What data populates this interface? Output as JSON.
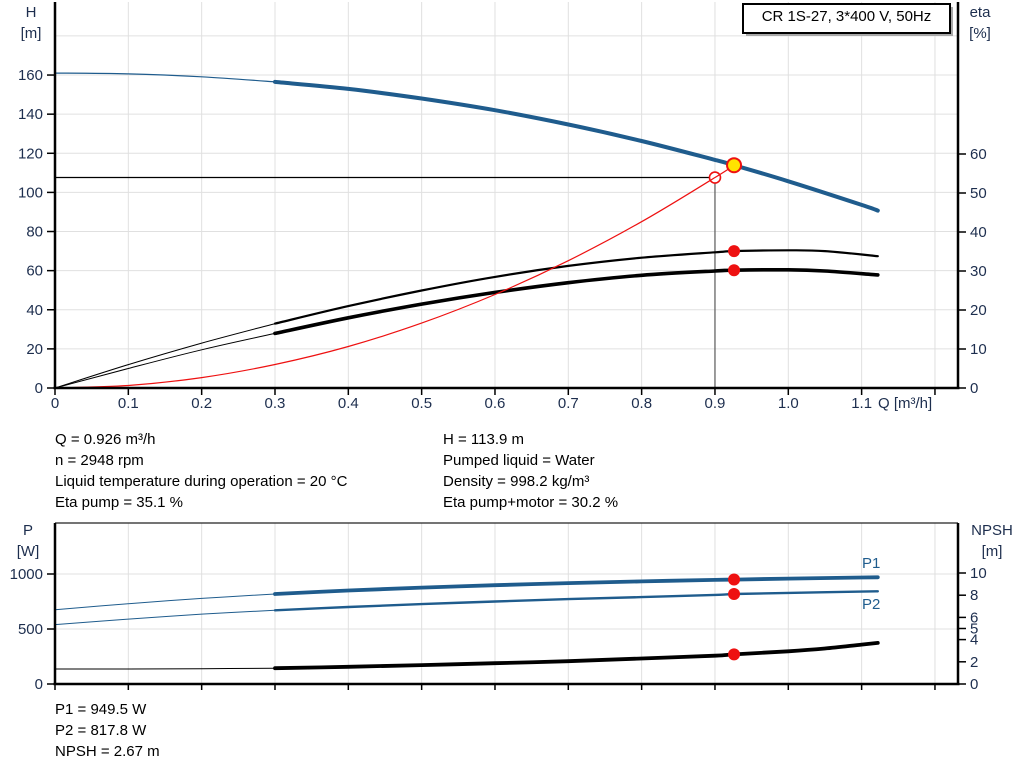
{
  "panel": {
    "title_box": "CR 1S-27, 3*400 V, 50Hz"
  },
  "axis_titles": {
    "h": "H",
    "h_unit": "[m]",
    "eta": "eta",
    "eta_unit": "[%]",
    "p": "P",
    "p_unit": "[W]",
    "npsh": "NPSH",
    "npsh_unit": "[m]",
    "q": "Q [m³/h]"
  },
  "series_labels": {
    "p1": "P1",
    "p2": "P2"
  },
  "info_block_top": {
    "left_lines": [
      "Q = 0.926 m³/h",
      "n = 2948 rpm",
      "Liquid temperature during operation = 20 °C",
      "Eta pump = 35.1 %"
    ],
    "right_lines": [
      "H = 113.9 m",
      "Pumped liquid = Water",
      "Density = 998.2 kg/m³",
      "Eta pump+motor = 30.2 %"
    ]
  },
  "info_block_bottom": {
    "lines": [
      "P1 = 949.5 W",
      "P2 = 817.8 W",
      "NPSH = 2.67 m"
    ]
  },
  "colors": {
    "curve_blue": "#1f5c8d",
    "curve_black": "#000000",
    "curve_red": "#ee1111",
    "duty_yellow": "#ffe300",
    "grid": "#e0e0e0",
    "axis": "#000000",
    "marker_gray": "#666666",
    "tick_text": "#1d2e4e"
  },
  "chart_data": [
    {
      "type": "line",
      "title": "CR 1S-27, 3*400 V, 50Hz",
      "xlabel": "Q [m³/h]",
      "xlim": [
        0,
        1.232
      ],
      "x_ticks": [
        0,
        0.1,
        0.2,
        0.3,
        0.4,
        0.5,
        0.6,
        0.7,
        0.8,
        0.9,
        1.0,
        1.1
      ],
      "x_grid": [
        0.1,
        0.2,
        0.3,
        0.4,
        0.5,
        0.6,
        0.7,
        0.8,
        0.9,
        1.0,
        1.1,
        1.2
      ],
      "y_left": {
        "label": "H [m]",
        "ticks": [
          0,
          20,
          40,
          60,
          80,
          100,
          120,
          140,
          160
        ],
        "grid": [
          20,
          40,
          60,
          80,
          100,
          120,
          140,
          160,
          180
        ],
        "lim": [
          0,
          198
        ]
      },
      "y_right": {
        "label": "eta [%]",
        "ticks": [
          0,
          10,
          20,
          30,
          40,
          50,
          60
        ],
        "lim": [
          0,
          99
        ]
      },
      "legend_position": "none",
      "series": [
        {
          "name": "H pump curve",
          "axis": "H",
          "color_key": "curve_blue",
          "thin_until": 0.3,
          "thin_width": 1.2,
          "thick_width": 4,
          "points": [
            [
              0,
              161
            ],
            [
              0.1,
              160.6
            ],
            [
              0.2,
              159.1
            ],
            [
              0.3,
              156.5
            ],
            [
              0.4,
              152.9
            ],
            [
              0.5,
              148.0
            ],
            [
              0.6,
              142.0
            ],
            [
              0.7,
              134.7
            ],
            [
              0.8,
              126.3
            ],
            [
              0.9,
              116.6
            ],
            [
              0.926,
              113.9
            ],
            [
              1.0,
              105.7
            ],
            [
              1.1,
              93.6
            ],
            [
              1.122,
              90.7
            ]
          ]
        },
        {
          "name": "Eta pump",
          "axis": "eta",
          "color_key": "curve_black",
          "thin_until": 0.3,
          "thin_width": 1,
          "thick_width": 2.2,
          "points": [
            [
              0,
              0
            ],
            [
              0.1,
              6.0
            ],
            [
              0.2,
              11.5
            ],
            [
              0.3,
              16.5
            ],
            [
              0.4,
              21.0
            ],
            [
              0.5,
              25.0
            ],
            [
              0.6,
              28.5
            ],
            [
              0.7,
              31.3
            ],
            [
              0.8,
              33.4
            ],
            [
              0.9,
              34.8
            ],
            [
              0.926,
              35.1
            ],
            [
              1.0,
              35.3
            ],
            [
              1.05,
              35.1
            ],
            [
              1.122,
              33.8
            ]
          ]
        },
        {
          "name": "Eta pump+motor",
          "axis": "eta",
          "color_key": "curve_black",
          "thin_until": 0.3,
          "thin_width": 1,
          "thick_width": 3.6,
          "points": [
            [
              0,
              0
            ],
            [
              0.1,
              5.0
            ],
            [
              0.2,
              9.8
            ],
            [
              0.3,
              14.0
            ],
            [
              0.4,
              18.0
            ],
            [
              0.5,
              21.5
            ],
            [
              0.6,
              24.5
            ],
            [
              0.7,
              27.0
            ],
            [
              0.8,
              28.9
            ],
            [
              0.9,
              30.0
            ],
            [
              0.926,
              30.2
            ],
            [
              1.0,
              30.3
            ],
            [
              1.05,
              30.0
            ],
            [
              1.122,
              29.0
            ]
          ]
        },
        {
          "name": "System curve",
          "axis": "H",
          "color_key": "curve_red",
          "thin_until": 9,
          "thin_width": 1.2,
          "thick_width": 1.2,
          "points": [
            [
              0,
              0
            ],
            [
              0.1,
              1.3
            ],
            [
              0.2,
              5.3
            ],
            [
              0.3,
              12.0
            ],
            [
              0.4,
              21.2
            ],
            [
              0.5,
              33.2
            ],
            [
              0.6,
              47.8
            ],
            [
              0.7,
              65.1
            ],
            [
              0.8,
              85.0
            ],
            [
              0.9,
              107.6
            ],
            [
              0.926,
              113.9
            ]
          ]
        }
      ],
      "duty_point": {
        "q": 0.926,
        "h": 113.9
      },
      "requested_point": {
        "q": 0.9,
        "h": 107.6
      },
      "eta_markers": [
        {
          "q": 0.926,
          "value": 35.1
        },
        {
          "q": 0.926,
          "value": 30.2
        }
      ]
    },
    {
      "type": "line",
      "title": "",
      "xlabel": "",
      "xlim": [
        0,
        1.232
      ],
      "x_ticks": [],
      "x_grid": [
        0.1,
        0.2,
        0.3,
        0.4,
        0.5,
        0.6,
        0.7,
        0.8,
        0.9,
        1.0,
        1.1,
        1.2
      ],
      "y_left": {
        "label": "P [W]",
        "ticks": [
          0,
          500,
          1000
        ],
        "grid": [
          500,
          1000
        ],
        "lim": [
          0,
          1460
        ]
      },
      "y_right": {
        "label": "NPSH [m]",
        "ticks": [
          0,
          2,
          4,
          5,
          6,
          8,
          10
        ],
        "lim": [
          0,
          14.5
        ]
      },
      "legend_position": "inline-right",
      "series": [
        {
          "name": "P1",
          "axis": "P",
          "color_key": "curve_blue",
          "thin_until": 0.3,
          "thin_width": 1,
          "thick_width": 3.8,
          "points": [
            [
              0,
              675
            ],
            [
              0.1,
              730
            ],
            [
              0.2,
              778
            ],
            [
              0.3,
              818
            ],
            [
              0.4,
              850
            ],
            [
              0.5,
              876
            ],
            [
              0.6,
              898
            ],
            [
              0.7,
              917
            ],
            [
              0.8,
              933
            ],
            [
              0.9,
              946
            ],
            [
              0.926,
              949.5
            ],
            [
              1.0,
              958
            ],
            [
              1.1,
              968
            ],
            [
              1.122,
              970
            ]
          ]
        },
        {
          "name": "P2",
          "axis": "P",
          "color_key": "curve_blue",
          "thin_until": 0.3,
          "thin_width": 1,
          "thick_width": 2.4,
          "points": [
            [
              0,
              540
            ],
            [
              0.1,
              590
            ],
            [
              0.2,
              635
            ],
            [
              0.3,
              670
            ],
            [
              0.4,
              700
            ],
            [
              0.5,
              726
            ],
            [
              0.6,
              750
            ],
            [
              0.7,
              772
            ],
            [
              0.8,
              790
            ],
            [
              0.9,
              810
            ],
            [
              0.926,
              817.8
            ],
            [
              1.0,
              828
            ],
            [
              1.1,
              840
            ],
            [
              1.122,
              843
            ]
          ]
        },
        {
          "name": "NPSH",
          "axis": "NPSH",
          "color_key": "curve_black",
          "thin_until": 0.3,
          "thin_width": 1,
          "thick_width": 3.8,
          "points": [
            [
              0,
              1.35
            ],
            [
              0.1,
              1.35
            ],
            [
              0.2,
              1.38
            ],
            [
              0.3,
              1.42
            ],
            [
              0.4,
              1.55
            ],
            [
              0.5,
              1.7
            ],
            [
              0.6,
              1.87
            ],
            [
              0.7,
              2.05
            ],
            [
              0.8,
              2.3
            ],
            [
              0.9,
              2.55
            ],
            [
              0.926,
              2.67
            ],
            [
              1.0,
              2.95
            ],
            [
              1.05,
              3.2
            ],
            [
              1.1,
              3.55
            ],
            [
              1.122,
              3.7
            ]
          ]
        }
      ],
      "markers": [
        {
          "q": 0.926,
          "axis": "P",
          "value": 949.5
        },
        {
          "q": 0.926,
          "axis": "P",
          "value": 817.8
        },
        {
          "q": 0.926,
          "axis": "NPSH",
          "value": 2.67
        }
      ]
    }
  ]
}
